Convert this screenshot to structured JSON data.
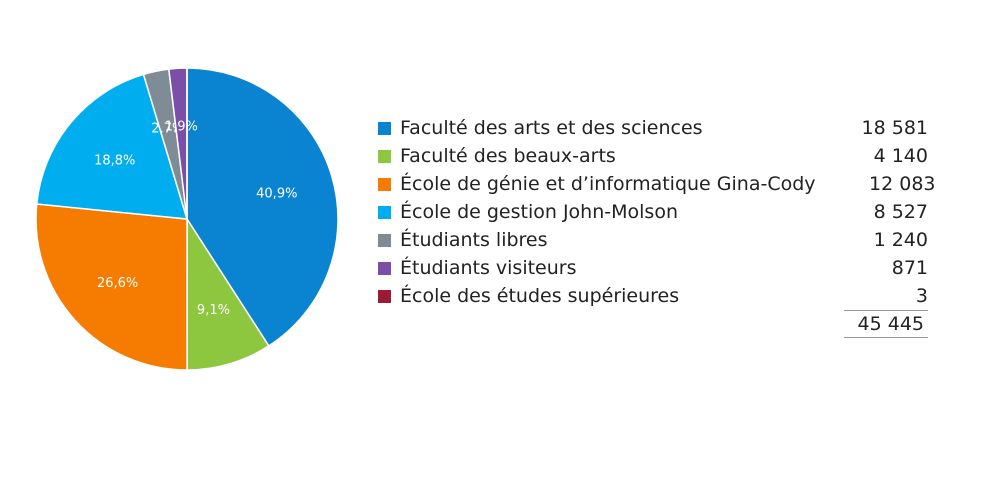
{
  "chart_data": {
    "type": "pie",
    "slices": [
      {
        "name": "Faculté des arts et des sciences",
        "value": 18581,
        "pct_label": "40,9%",
        "value_label": "18 581",
        "color": "#0a84d0"
      },
      {
        "name": "Faculté des beaux-arts",
        "value": 4140,
        "pct_label": "9,1%",
        "value_label": "4 140",
        "color": "#8dc63f"
      },
      {
        "name": "École de génie et d’informatique Gina-Cody",
        "value": 12083,
        "pct_label": "26,6%",
        "value_label": "12 083",
        "color": "#f57c00"
      },
      {
        "name": "École de gestion John-Molson",
        "value": 8527,
        "pct_label": "18,8%",
        "value_label": "8 527",
        "color": "#00aeef"
      },
      {
        "name": "Étudiants libres",
        "value": 1240,
        "pct_label": "2,7%",
        "value_label": "1 240",
        "color": "#7f8c95"
      },
      {
        "name": "Étudiants visiteurs",
        "value": 871,
        "pct_label": "1,9%",
        "value_label": "871",
        "color": "#7b4fa8"
      },
      {
        "name": "École des études supérieures",
        "value": 3,
        "pct_label": "",
        "value_label": "3",
        "color": "#9b1b30"
      }
    ],
    "total_label": "45 445",
    "legend_position": "right"
  }
}
